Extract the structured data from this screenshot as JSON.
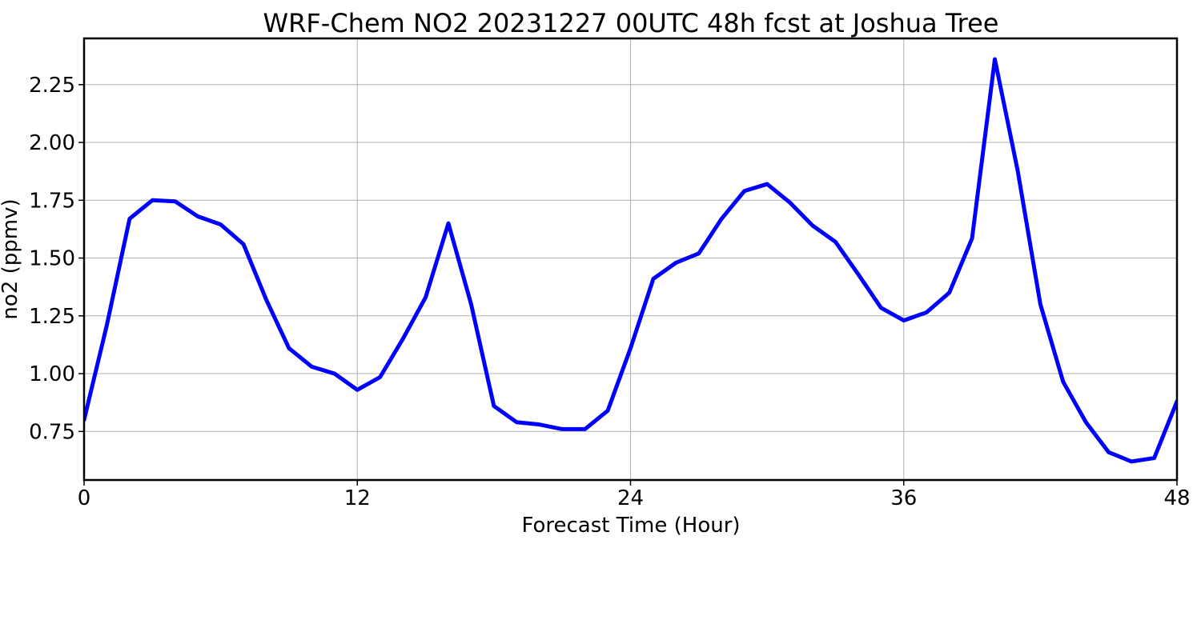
{
  "chart_data": {
    "type": "line",
    "title": "WRF-Chem NO2  20231227 00UTC 48h fcst at Joshua Tree",
    "xlabel": "Forecast Time (Hour)",
    "ylabel": "no2  (ppmv)",
    "xlim": [
      0,
      48
    ],
    "ylim": [
      0.54,
      2.45
    ],
    "xticks": [
      0,
      12,
      24,
      36,
      48
    ],
    "yticks": [
      0.75,
      1.0,
      1.25,
      1.5,
      1.75,
      2.0,
      2.25
    ],
    "ytick_labels": [
      "0.75",
      "1.00",
      "1.25",
      "1.50",
      "1.75",
      "2.00",
      "2.25"
    ],
    "grid": true,
    "legend": "none",
    "series": [
      {
        "color": "#0000ff",
        "x": [
          0,
          1,
          2,
          3,
          4,
          5,
          6,
          7,
          8,
          9,
          10,
          11,
          12,
          13,
          14,
          15,
          16,
          17,
          18,
          19,
          20,
          21,
          22,
          23,
          24,
          25,
          26,
          27,
          28,
          29,
          30,
          31,
          32,
          33,
          34,
          35,
          36,
          37,
          38,
          39,
          40,
          41,
          42,
          43,
          44,
          45,
          46,
          47,
          48
        ],
        "values": [
          0.8,
          1.21,
          1.67,
          1.75,
          1.745,
          1.68,
          1.645,
          1.56,
          1.32,
          1.11,
          1.03,
          1.0,
          0.93,
          0.985,
          1.15,
          1.33,
          1.65,
          1.3,
          0.86,
          0.79,
          0.78,
          0.76,
          0.76,
          0.84,
          1.11,
          1.41,
          1.48,
          1.52,
          1.67,
          1.79,
          1.82,
          1.74,
          1.64,
          1.57,
          1.43,
          1.285,
          1.23,
          1.265,
          1.35,
          1.585,
          2.36,
          1.88,
          1.3,
          0.965,
          0.79,
          0.66,
          0.62,
          0.635,
          0.88
        ]
      }
    ]
  }
}
